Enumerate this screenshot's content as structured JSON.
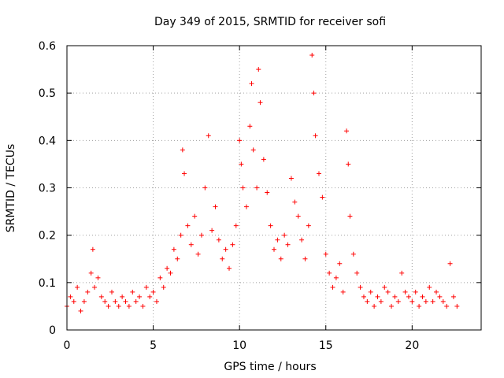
{
  "chart_data": {
    "type": "scatter",
    "marker": "plus",
    "title": "Day 349 of 2015, SRMTID for receiver sofi",
    "xlabel": "GPS time / hours",
    "ylabel": "SRMTID / TECUs",
    "xlim": [
      0,
      24
    ],
    "ylim": [
      0,
      0.6
    ],
    "xticks": [
      0,
      5,
      10,
      15,
      20
    ],
    "xtick_labels": [
      "0",
      "5",
      "10",
      "15",
      "20"
    ],
    "yticks": [
      0,
      0.1,
      0.2,
      0.3,
      0.4,
      0.5,
      0.6
    ],
    "ytick_labels": [
      "0",
      "0.1",
      "0.2",
      "0.3",
      "0.4",
      "0.5",
      "0.6"
    ],
    "grid": true,
    "series": [
      {
        "name": "SRMTID",
        "color": "#ff0000",
        "x": [
          0.0,
          0.2,
          0.4,
          0.6,
          0.8,
          1.0,
          1.2,
          1.4,
          1.5,
          1.6,
          1.8,
          2.0,
          2.2,
          2.4,
          2.6,
          2.8,
          3.0,
          3.2,
          3.4,
          3.6,
          3.8,
          4.0,
          4.2,
          4.4,
          4.6,
          4.8,
          5.0,
          5.2,
          5.4,
          5.6,
          5.8,
          6.0,
          6.2,
          6.4,
          6.6,
          6.7,
          6.8,
          7.0,
          7.2,
          7.4,
          7.6,
          7.8,
          8.0,
          8.2,
          8.4,
          8.6,
          8.8,
          9.0,
          9.2,
          9.4,
          9.6,
          9.8,
          10.0,
          10.1,
          10.2,
          10.4,
          10.6,
          10.7,
          10.8,
          11.0,
          11.1,
          11.2,
          11.4,
          11.6,
          11.8,
          12.0,
          12.2,
          12.4,
          12.6,
          12.8,
          13.0,
          13.2,
          13.4,
          13.6,
          13.8,
          14.0,
          14.2,
          14.3,
          14.4,
          14.6,
          14.8,
          15.0,
          15.2,
          15.4,
          15.6,
          15.8,
          16.0,
          16.2,
          16.3,
          16.4,
          16.6,
          16.8,
          17.0,
          17.2,
          17.4,
          17.6,
          17.8,
          18.0,
          18.2,
          18.4,
          18.6,
          18.8,
          19.0,
          19.2,
          19.4,
          19.6,
          19.8,
          20.0,
          20.2,
          20.4,
          20.6,
          20.8,
          21.0,
          21.2,
          21.4,
          21.6,
          21.8,
          22.0,
          22.2,
          22.4,
          22.6
        ],
        "y": [
          0.05,
          0.07,
          0.06,
          0.09,
          0.04,
          0.06,
          0.08,
          0.12,
          0.17,
          0.09,
          0.11,
          0.07,
          0.06,
          0.05,
          0.08,
          0.06,
          0.05,
          0.07,
          0.06,
          0.05,
          0.08,
          0.06,
          0.07,
          0.05,
          0.09,
          0.07,
          0.08,
          0.06,
          0.11,
          0.09,
          0.13,
          0.12,
          0.17,
          0.15,
          0.2,
          0.38,
          0.33,
          0.22,
          0.18,
          0.24,
          0.16,
          0.2,
          0.3,
          0.41,
          0.21,
          0.26,
          0.19,
          0.15,
          0.17,
          0.13,
          0.18,
          0.22,
          0.4,
          0.35,
          0.3,
          0.26,
          0.43,
          0.52,
          0.38,
          0.3,
          0.55,
          0.48,
          0.36,
          0.29,
          0.22,
          0.17,
          0.19,
          0.15,
          0.2,
          0.18,
          0.32,
          0.27,
          0.24,
          0.19,
          0.15,
          0.22,
          0.58,
          0.5,
          0.41,
          0.33,
          0.28,
          0.16,
          0.12,
          0.09,
          0.11,
          0.14,
          0.08,
          0.42,
          0.35,
          0.24,
          0.16,
          0.12,
          0.09,
          0.07,
          0.06,
          0.08,
          0.05,
          0.07,
          0.06,
          0.09,
          0.08,
          0.05,
          0.07,
          0.06,
          0.12,
          0.08,
          0.07,
          0.06,
          0.08,
          0.05,
          0.07,
          0.06,
          0.09,
          0.06,
          0.08,
          0.07,
          0.06,
          0.05,
          0.14,
          0.07,
          0.05
        ]
      }
    ]
  }
}
